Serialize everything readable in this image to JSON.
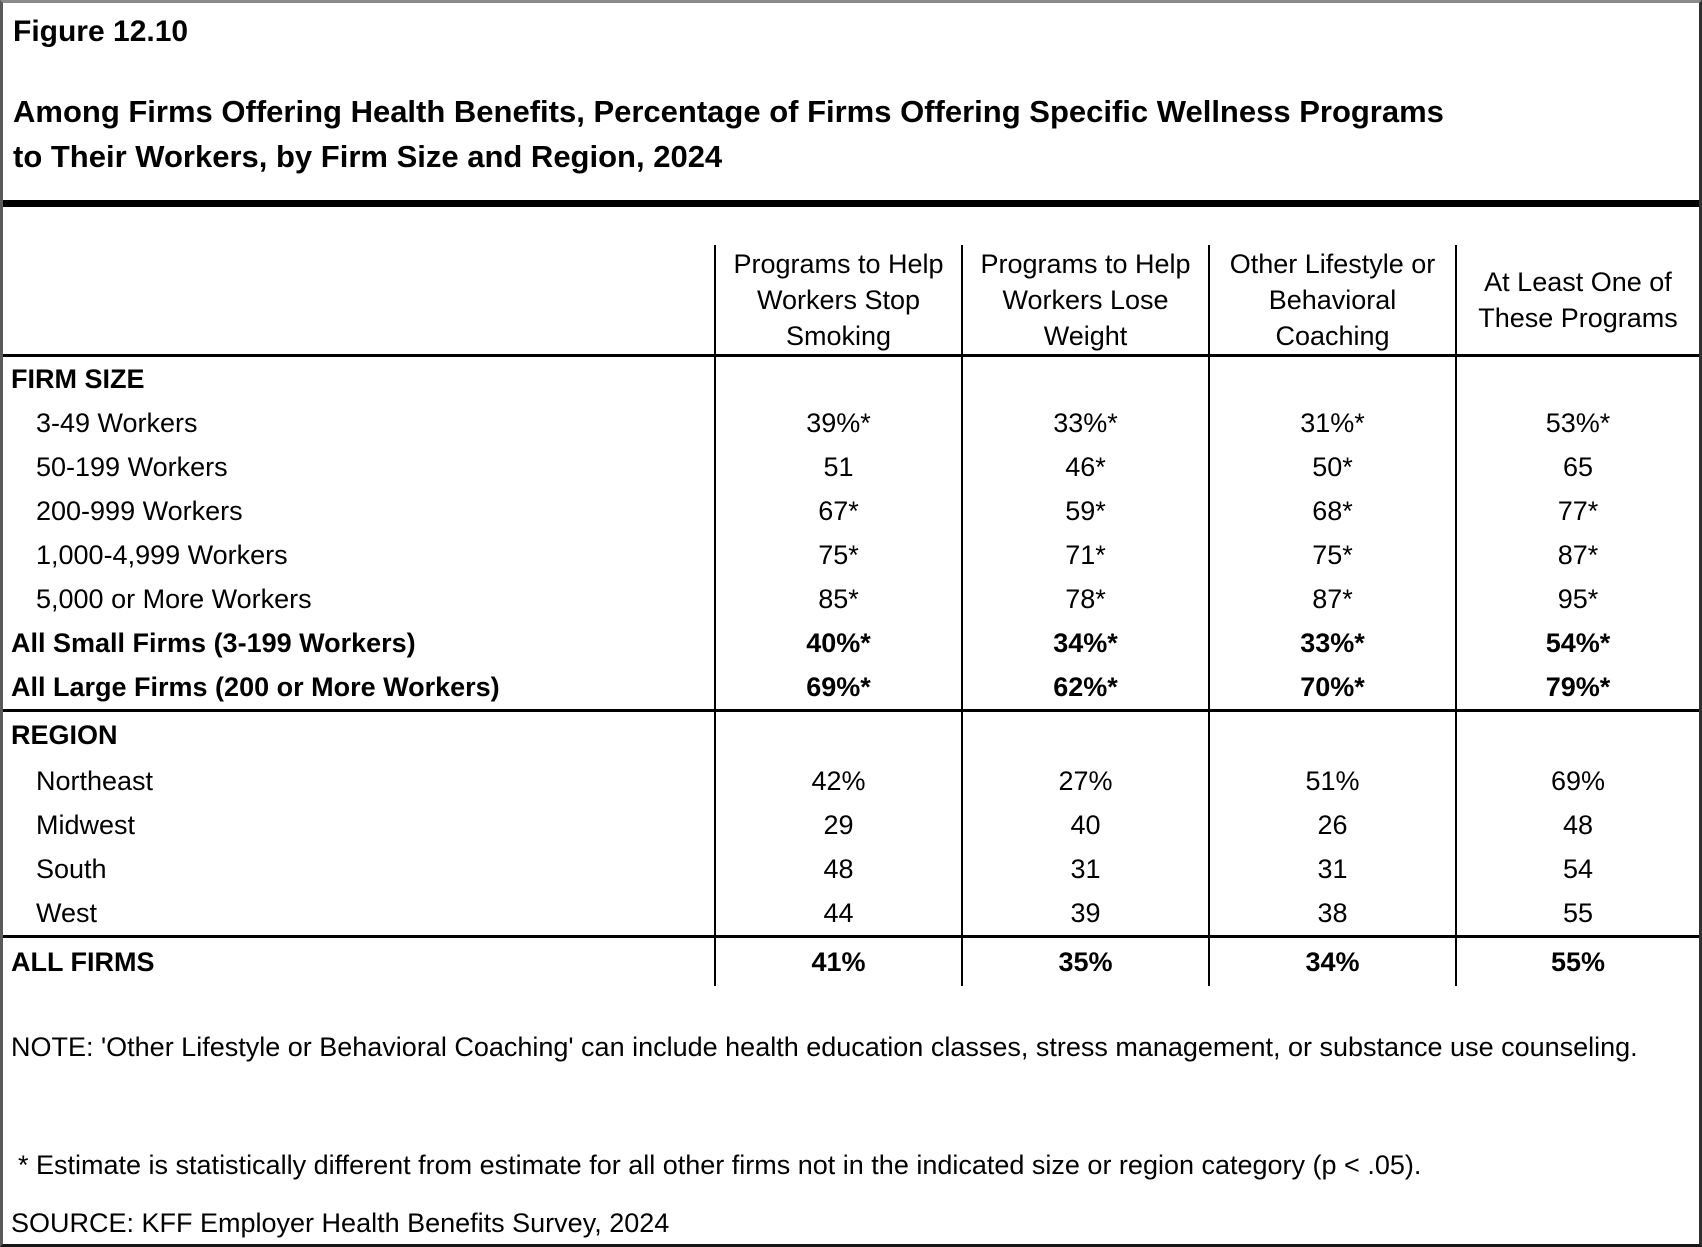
{
  "figure": {
    "label": "Figure 12.10",
    "title": "Among Firms Offering Health Benefits, Percentage of Firms Offering Specific Wellness Programs\nto Their Workers, by Firm Size and Region, 2024"
  },
  "chart_data": {
    "type": "table",
    "title": "Among Firms Offering Health Benefits, Percentage of Firms Offering Specific Wellness Programs to Their Workers, by Firm Size and Region, 2024",
    "columns": [
      "Programs to Help Workers Stop Smoking",
      "Programs to Help Workers Lose Weight",
      "Other Lifestyle or Behavioral Coaching",
      "At Least One of These Programs"
    ],
    "columns_display": [
      "Programs to Help\nWorkers Stop\nSmoking",
      "Programs to Help\nWorkers Lose\nWeight",
      "Other Lifestyle or\nBehavioral\nCoaching",
      "At Least One of\nThese Programs"
    ],
    "rows": [
      {
        "label": "FIRM SIZE",
        "values": [
          "",
          "",
          "",
          ""
        ],
        "type": "section"
      },
      {
        "label": "3-49 Workers",
        "values": [
          "39%*",
          "33%*",
          "31%*",
          "53%*"
        ],
        "type": "data"
      },
      {
        "label": "50-199 Workers",
        "values": [
          "51",
          "46*",
          "50*",
          "65"
        ],
        "type": "data"
      },
      {
        "label": "200-999 Workers",
        "values": [
          "67*",
          "59*",
          "68*",
          "77*"
        ],
        "type": "data"
      },
      {
        "label": "1,000-4,999 Workers",
        "values": [
          "75*",
          "71*",
          "75*",
          "87*"
        ],
        "type": "data"
      },
      {
        "label": "5,000 or More Workers",
        "values": [
          "85*",
          "78*",
          "87*",
          "95*"
        ],
        "type": "data"
      },
      {
        "label": "All Small Firms (3-199 Workers)",
        "values": [
          "40%*",
          "34%*",
          "33%*",
          "54%*"
        ],
        "type": "summary"
      },
      {
        "label": "All Large Firms (200 or More Workers)",
        "values": [
          "69%*",
          "62%*",
          "70%*",
          "79%*"
        ],
        "type": "summary"
      },
      {
        "label": "REGION",
        "values": [
          "",
          "",
          "",
          ""
        ],
        "type": "section"
      },
      {
        "label": "Northeast",
        "values": [
          "42%",
          "27%",
          "51%",
          "69%"
        ],
        "type": "data"
      },
      {
        "label": "Midwest",
        "values": [
          "29",
          "40",
          "26",
          "48"
        ],
        "type": "data"
      },
      {
        "label": "South",
        "values": [
          "48",
          "31",
          "31",
          "54"
        ],
        "type": "data"
      },
      {
        "label": "West",
        "values": [
          "44",
          "39",
          "38",
          "55"
        ],
        "type": "data"
      },
      {
        "label": "ALL FIRMS",
        "values": [
          "41%",
          "35%",
          "34%",
          "55%"
        ],
        "type": "total"
      }
    ]
  },
  "notes": {
    "note": "NOTE: 'Other Lifestyle or Behavioral Coaching' can include health education classes, stress management, or substance use counseling.",
    "asterisk": "* Estimate is statistically different from estimate for all other firms not in the indicated size or region category (p < .05).",
    "source": "SOURCE: KFF Employer Health Benefits Survey, 2024"
  }
}
